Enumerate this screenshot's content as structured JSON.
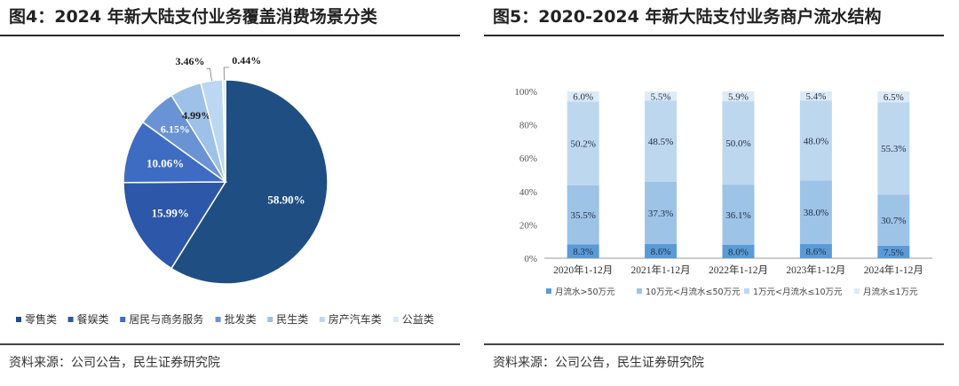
{
  "left": {
    "title": "图4：2024 年新大陆支付业务覆盖消费场景分类",
    "source": "资料来源：公司公告，民生证券研究院"
  },
  "right": {
    "title": "图5：2020-2024 年新大陆支付业务商户流水结构",
    "source": "资料来源：公司公告，民生证券研究院"
  },
  "chart_data": [
    {
      "type": "pie",
      "title": "图4：2024 年新大陆支付业务覆盖消费场景分类",
      "categories": [
        "零售类",
        "餐娱类",
        "居民与商务服务",
        "批发类",
        "民生类",
        "房产汽车类",
        "公益类"
      ],
      "values": [
        58.9,
        15.99,
        10.06,
        6.15,
        4.99,
        3.46,
        0.44
      ],
      "labels": [
        "58.90%",
        "15.99%",
        "10.06%",
        "6.15%",
        "4.99%",
        "3.46%",
        "0.44%"
      ],
      "colors": [
        "#1f4e82",
        "#2d57a8",
        "#3e6cc3",
        "#6a93d6",
        "#9dc1e8",
        "#bcd7f1",
        "#d7e8f7"
      ],
      "legend": "bottom"
    },
    {
      "type": "bar",
      "stacked": true,
      "title": "图5：2020-2024 年新大陆支付业务商户流水结构",
      "categories": [
        "2020年1-12月",
        "2021年1-12月",
        "2022年1-12月",
        "2023年1-12月",
        "2024年1-12月"
      ],
      "series": [
        {
          "name": "月流水>50万元",
          "values": [
            8.3,
            8.6,
            8.0,
            8.6,
            7.5
          ],
          "labels": [
            "8.3%",
            "8.6%",
            "8.0%",
            "8.6%",
            "7.5%"
          ],
          "color": "#5b9bd5"
        },
        {
          "name": "10万元<月流水≤50万元",
          "values": [
            35.5,
            37.3,
            36.1,
            38.0,
            30.7
          ],
          "labels": [
            "35.5%",
            "37.3%",
            "36.1%",
            "38.0%",
            "30.7%"
          ],
          "color": "#9dc3e6"
        },
        {
          "name": "1万元<月流水≤10万元",
          "values": [
            50.2,
            48.5,
            50.0,
            48.0,
            55.3
          ],
          "labels": [
            "50.2%",
            "48.5%",
            "50.0%",
            "48.0%",
            "55.3%"
          ],
          "color": "#bdd7ee"
        },
        {
          "name": "月流水≤1万元",
          "values": [
            6.0,
            5.5,
            5.9,
            5.4,
            6.5
          ],
          "labels": [
            "6.0%",
            "5.5%",
            "5.9%",
            "5.4%",
            "6.5%"
          ],
          "color": "#ddebf7"
        }
      ],
      "ylim": [
        0,
        100
      ],
      "yticks": [
        "0%",
        "20%",
        "40%",
        "60%",
        "80%",
        "100%"
      ],
      "legend": "bottom",
      "grid": false
    }
  ]
}
